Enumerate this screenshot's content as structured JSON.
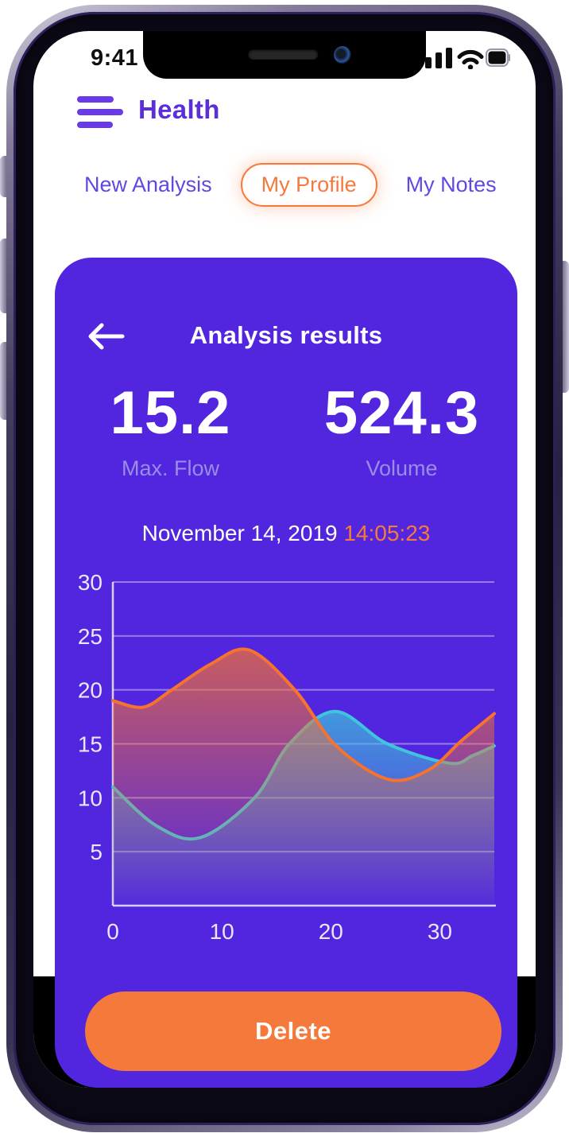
{
  "statusbar": {
    "time": "9:41",
    "icons": [
      "signal-icon",
      "wifi-icon",
      "battery-icon"
    ]
  },
  "header": {
    "title": "Health",
    "menu_icon": "menu-icon"
  },
  "tabs": [
    {
      "label": "New Analysis",
      "active": false
    },
    {
      "label": "My Profile",
      "active": true
    },
    {
      "label": "My Notes",
      "active": false
    }
  ],
  "results": {
    "title": "Analysis results",
    "back_icon": "back-arrow-icon",
    "stats": [
      {
        "value": "15.2",
        "label": "Max. Flow"
      },
      {
        "value": "524.3",
        "label": "Volume"
      }
    ],
    "date": "November 14, 2019",
    "time": "14:05:23",
    "delete_label": "Delete"
  },
  "colors": {
    "card_purple": "#5226DF",
    "accent_orange": "#F6793C",
    "curve_orange": "#F6722F",
    "curve_cyan": "#3EC4DC",
    "tab_purple": "#6247E3",
    "stat_label_lavender": "#9C8CE8"
  },
  "chart_data": {
    "type": "area",
    "title": "",
    "xlabel": "",
    "ylabel": "",
    "xlim": [
      0,
      35
    ],
    "ylim": [
      0,
      30
    ],
    "x_ticks": [
      0,
      10,
      20,
      30
    ],
    "y_ticks": [
      5,
      10,
      15,
      20,
      25,
      30
    ],
    "grid": "horizontal",
    "legend": "none",
    "series": [
      {
        "name": "flow (orange)",
        "color": "#F6722F",
        "x": [
          0,
          2.8,
          5.4,
          9,
          12.5,
          16.7,
          20.5,
          25.3,
          29,
          32,
          35
        ],
        "y": [
          19,
          18.4,
          20,
          22.4,
          23.7,
          20,
          14.8,
          11.7,
          12.6,
          15.3,
          17.8
        ]
      },
      {
        "name": "volume (cyan)",
        "color": "#3EC4DC",
        "x": [
          0,
          4,
          8,
          13,
          16.2,
          20.4,
          25.2,
          30.9,
          33,
          35
        ],
        "y": [
          11,
          7.4,
          6.3,
          10,
          15,
          18,
          15,
          13.2,
          13.9,
          14.8
        ]
      }
    ]
  }
}
